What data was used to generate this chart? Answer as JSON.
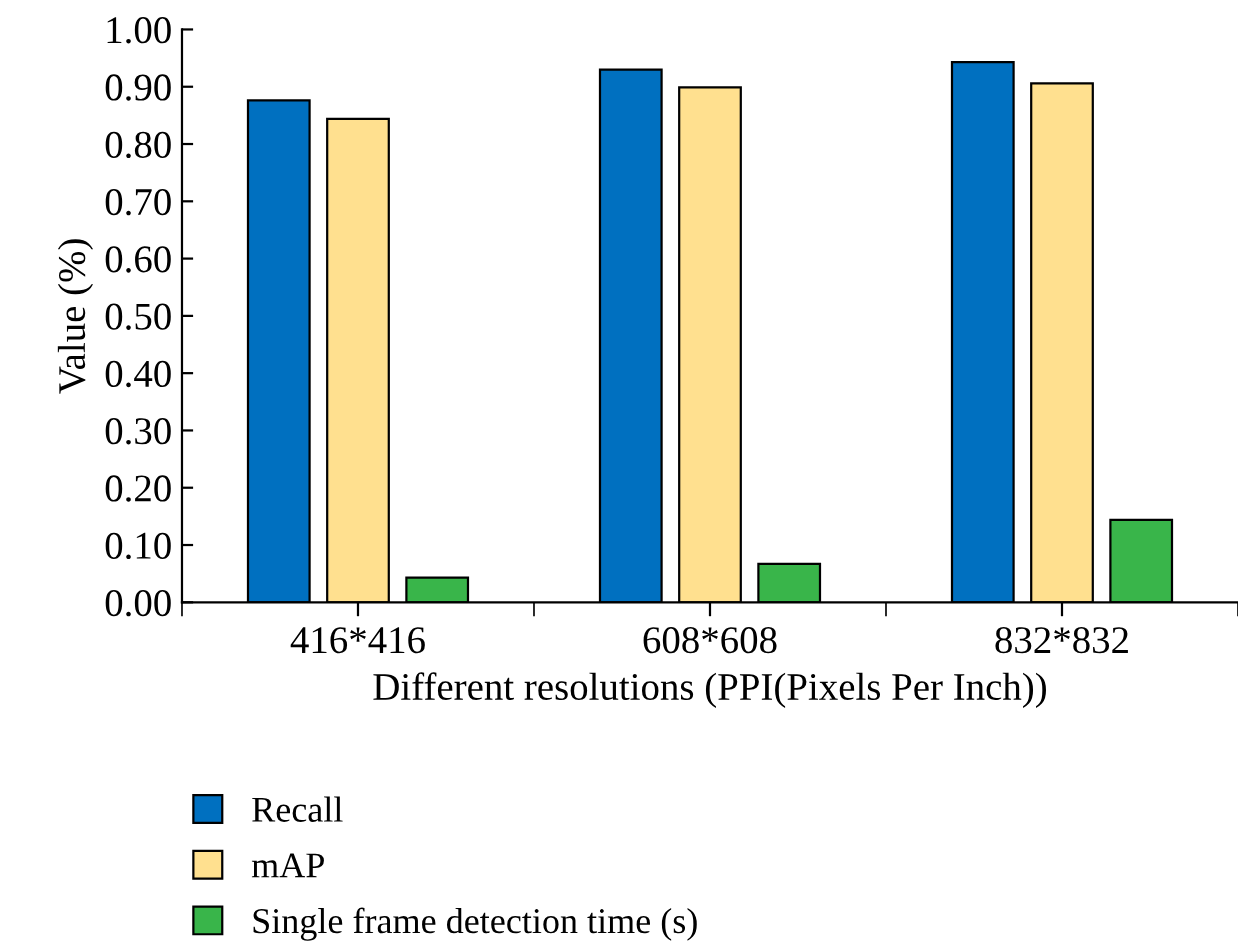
{
  "chart_data": {
    "type": "bar",
    "xlabel": "Different resolutions (PPI(Pixels Per Inch))",
    "ylabel": "Value (%)",
    "categories": [
      "416*416",
      "608*608",
      "832*832"
    ],
    "series": [
      {
        "name": "Recall",
        "color": "#0070c0",
        "values": [
          0.876,
          0.93,
          0.943
        ]
      },
      {
        "name": "mAP",
        "color": "#ffe08f",
        "values": [
          0.844,
          0.899,
          0.906
        ]
      },
      {
        "name": "Single frame detection time (s)",
        "color": "#39b54a",
        "values": [
          0.043,
          0.067,
          0.144
        ]
      }
    ],
    "ylim": [
      0,
      1.0
    ],
    "yticks": [
      {
        "value": 0,
        "label": "0.00"
      },
      {
        "value": 0.1,
        "label": "0.10"
      },
      {
        "value": 0.2,
        "label": "0.20"
      },
      {
        "value": 0.3,
        "label": "0.30"
      },
      {
        "value": 0.4,
        "label": "0.40"
      },
      {
        "value": 0.5,
        "label": "0.50"
      },
      {
        "value": 0.6,
        "label": "0.60"
      },
      {
        "value": 0.7,
        "label": "0.70"
      },
      {
        "value": 0.8,
        "label": "0.80"
      },
      {
        "value": 0.9,
        "label": "0.90"
      },
      {
        "value": 1.0,
        "label": "1.00"
      }
    ],
    "grid": false,
    "legend": "bottom"
  }
}
